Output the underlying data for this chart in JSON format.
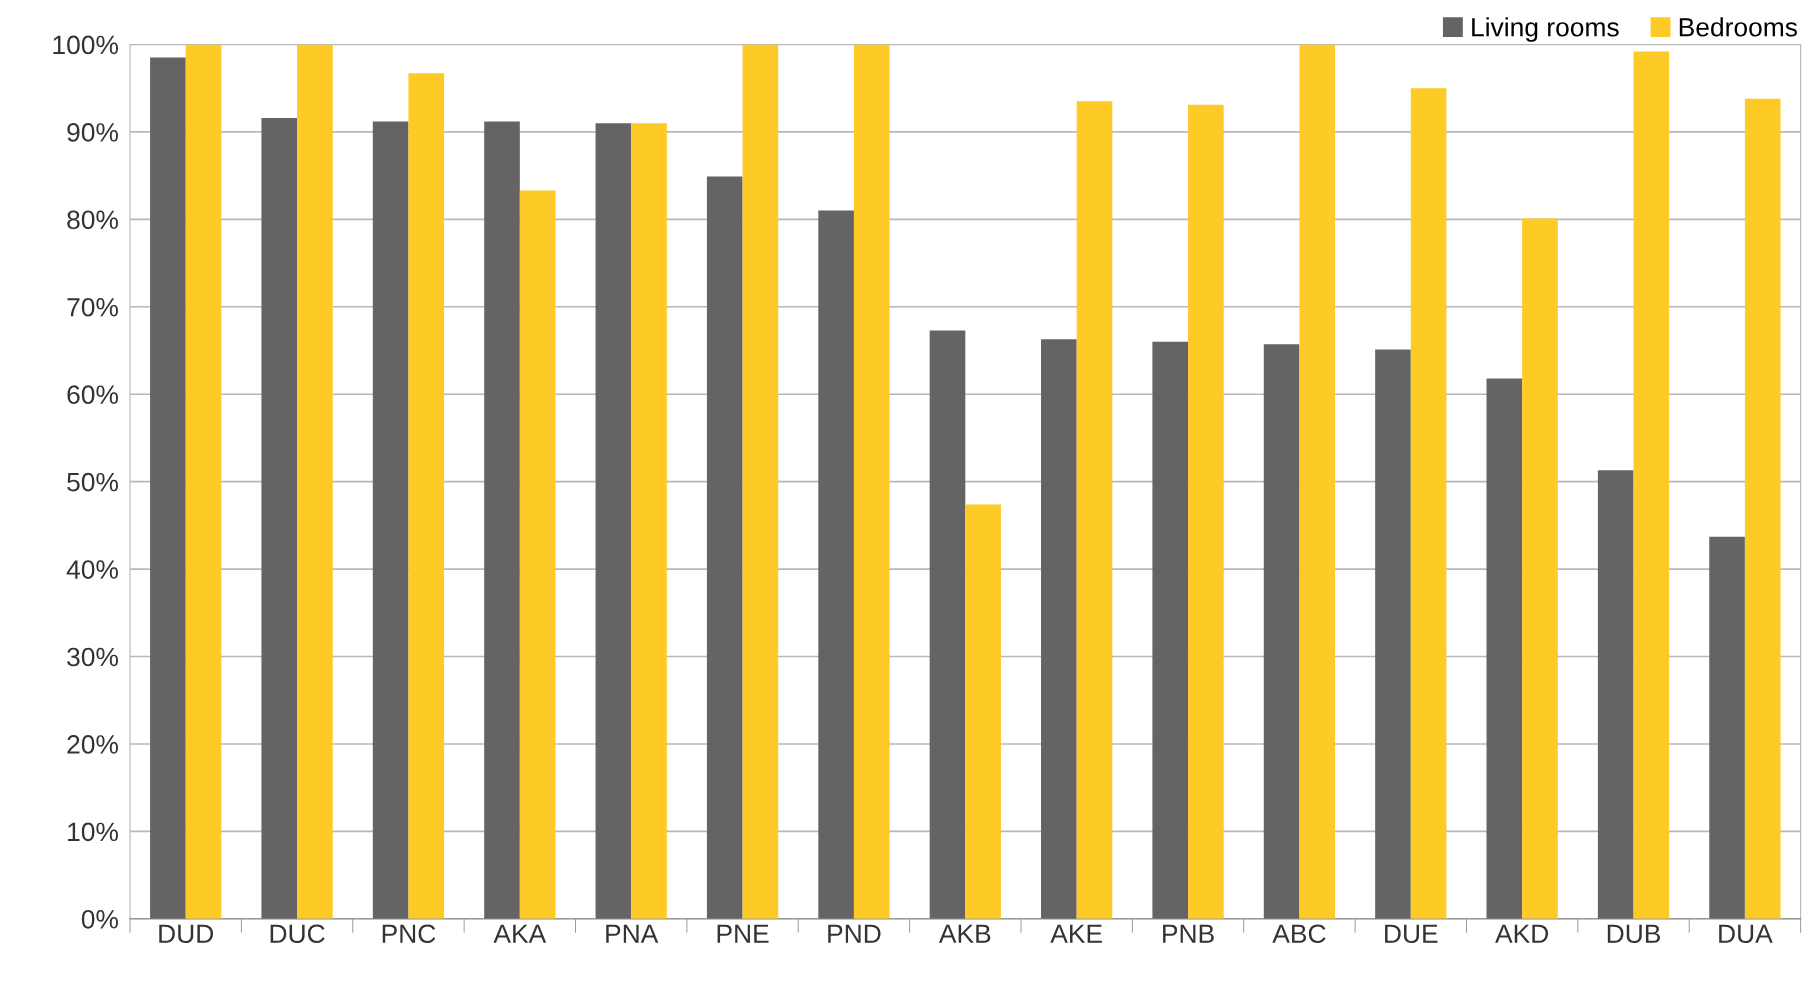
{
  "chart_data": {
    "type": "bar",
    "categories": [
      "DUD",
      "DUC",
      "PNC",
      "AKA",
      "PNA",
      "PNE",
      "PND",
      "AKB",
      "AKE",
      "PNB",
      "ABC",
      "DUE",
      "AKD",
      "DUB",
      "DUA"
    ],
    "series": [
      {
        "name": "Living rooms",
        "color": "#646464",
        "values": [
          98.5,
          91.6,
          91.2,
          91.2,
          91.0,
          84.9,
          81.0,
          67.3,
          66.3,
          66.0,
          65.7,
          65.1,
          61.8,
          51.3,
          43.7
        ]
      },
      {
        "name": "Bedrooms",
        "color": "#fdca26",
        "values": [
          100,
          100,
          96.7,
          83.3,
          91.0,
          100,
          100,
          47.4,
          93.5,
          93.1,
          100,
          95.0,
          80.1,
          99.2,
          93.8
        ]
      }
    ],
    "ylim": [
      0,
      100
    ],
    "yticks": [
      {
        "value": 0,
        "label": "0%"
      },
      {
        "value": 10,
        "label": "10%"
      },
      {
        "value": 20,
        "label": "20%"
      },
      {
        "value": 30,
        "label": "30%"
      },
      {
        "value": 40,
        "label": "40%"
      },
      {
        "value": 50,
        "label": "50%"
      },
      {
        "value": 60,
        "label": "60%"
      },
      {
        "value": 70,
        "label": "70%"
      },
      {
        "value": 80,
        "label": "80%"
      },
      {
        "value": 90,
        "label": "90%"
      },
      {
        "value": 100,
        "label": "100%"
      }
    ],
    "grid": "y",
    "legend": "top right"
  }
}
